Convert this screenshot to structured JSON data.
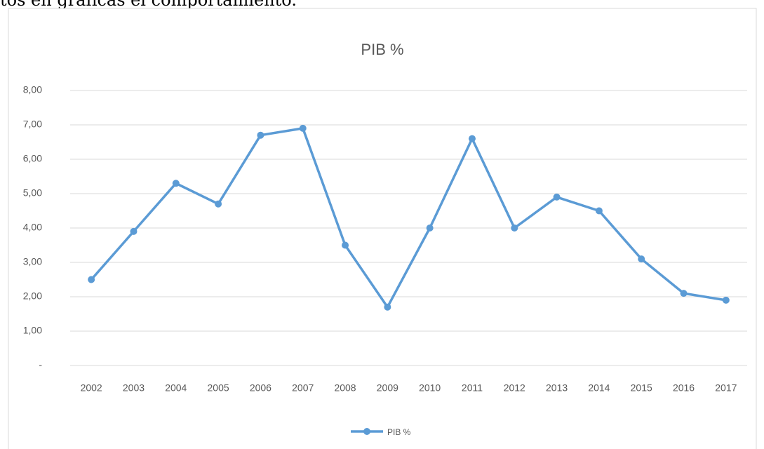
{
  "caption": "tos en gráficas el comportamiento.",
  "chart_data": {
    "type": "line",
    "title": "PIB %",
    "categories": [
      "2002",
      "2003",
      "2004",
      "2005",
      "2006",
      "2007",
      "2008",
      "2009",
      "2010",
      "2011",
      "2012",
      "2013",
      "2014",
      "2015",
      "2016",
      "2017"
    ],
    "series": [
      {
        "name": "PIB %",
        "color": "#5b9bd5",
        "values": [
          2.5,
          3.9,
          5.3,
          4.7,
          6.7,
          6.9,
          3.5,
          1.7,
          4.0,
          6.6,
          4.0,
          4.9,
          4.5,
          3.1,
          2.1,
          1.9
        ]
      }
    ],
    "ylim": [
      0,
      8
    ],
    "yticks": [
      {
        "value": 0,
        "label": "-"
      },
      {
        "value": 1,
        "label": "1,00"
      },
      {
        "value": 2,
        "label": "2,00"
      },
      {
        "value": 3,
        "label": "3,00"
      },
      {
        "value": 4,
        "label": "4,00"
      },
      {
        "value": 5,
        "label": "5,00"
      },
      {
        "value": 6,
        "label": "6,00"
      },
      {
        "value": 7,
        "label": "7,00"
      },
      {
        "value": 8,
        "label": "8,00"
      }
    ],
    "grid": true,
    "legend": "bottom"
  }
}
